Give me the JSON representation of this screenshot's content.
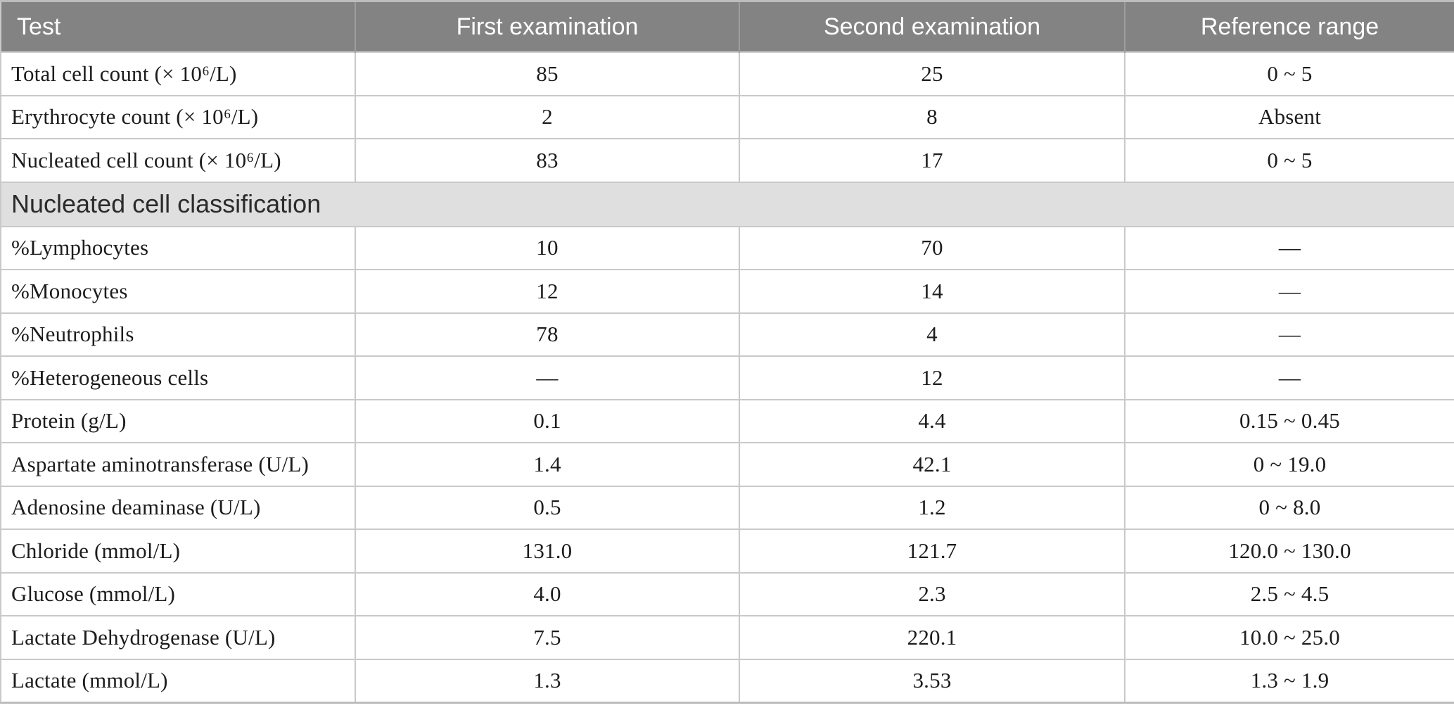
{
  "table": {
    "columns": [
      {
        "label": "Test",
        "align": "left"
      },
      {
        "label": "First examination",
        "align": "center"
      },
      {
        "label": "Second examination",
        "align": "center"
      },
      {
        "label": "Reference range",
        "align": "center"
      }
    ],
    "rows": [
      {
        "type": "data",
        "test": "Total cell count (× 10⁶/L)",
        "first": "85",
        "second": "25",
        "reference": "0 ~ 5"
      },
      {
        "type": "data",
        "test": "Erythrocyte count (× 10⁶/L)",
        "first": "2",
        "second": "8",
        "reference": "Absent"
      },
      {
        "type": "data",
        "test": "Nucleated cell count (× 10⁶/L)",
        "first": "83",
        "second": "17",
        "reference": "0 ~ 5"
      },
      {
        "type": "section",
        "test": "Nucleated cell classification"
      },
      {
        "type": "data",
        "test": "%Lymphocytes",
        "first": "10",
        "second": "70",
        "reference": "—"
      },
      {
        "type": "data",
        "test": "%Monocytes",
        "first": "12",
        "second": "14",
        "reference": "—"
      },
      {
        "type": "data",
        "test": "%Neutrophils",
        "first": "78",
        "second": "4",
        "reference": "—"
      },
      {
        "type": "data",
        "test": "%Heterogeneous cells",
        "first": "—",
        "second": "12",
        "reference": "—"
      },
      {
        "type": "data",
        "test": "Protein (g/L)",
        "first": "0.1",
        "second": "4.4",
        "reference": "0.15 ~ 0.45"
      },
      {
        "type": "data",
        "test": "Aspartate aminotransferase (U/L)",
        "first": "1.4",
        "second": "42.1",
        "reference": "0 ~ 19.0"
      },
      {
        "type": "data",
        "test": "Adenosine deaminase (U/L)",
        "first": "0.5",
        "second": "1.2",
        "reference": "0 ~ 8.0"
      },
      {
        "type": "data",
        "test": "Chloride (mmol/L)",
        "first": "131.0",
        "second": "121.7",
        "reference": "120.0 ~ 130.0"
      },
      {
        "type": "data",
        "test": "Glucose (mmol/L)",
        "first": "4.0",
        "second": "2.3",
        "reference": "2.5 ~ 4.5"
      },
      {
        "type": "data",
        "test": "Lactate Dehydrogenase (U/L)",
        "first": "7.5",
        "second": "220.1",
        "reference": "10.0 ~ 25.0"
      },
      {
        "type": "data",
        "test": "Lactate (mmol/L)",
        "first": "1.3",
        "second": "3.53",
        "reference": "1.3 ~ 1.9"
      }
    ]
  },
  "colors": {
    "header_bg": "#838383",
    "header_text": "#ffffff",
    "section_bg": "#e0dfdf",
    "body_text": "#1c1c1c",
    "grid_line": "#c9c9c9",
    "outer_border": "#bdbdbd"
  }
}
